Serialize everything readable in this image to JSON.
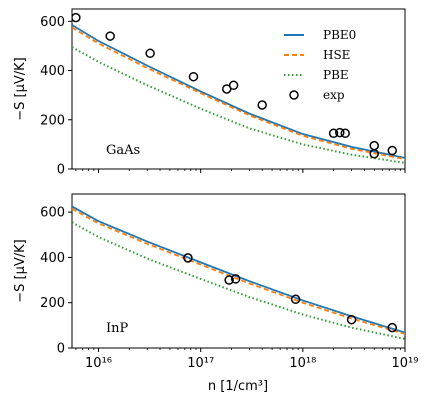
{
  "chart_data": [
    {
      "type": "line",
      "annotation": "GaAs",
      "ylabel": "−S [μV/K]",
      "xlabel": "",
      "xscale": "log",
      "xlim": [
        5500000000000000.0,
        1e+19
      ],
      "ylim": [
        0,
        650
      ],
      "yticks": [
        0,
        200,
        400,
        600
      ],
      "xticks": [
        1e+16,
        1e+17,
        1e+18,
        1e+19
      ],
      "xtick_labels": [],
      "legend": {
        "placement": "top-right",
        "entries": [
          "PBE0",
          "HSE",
          "PBE",
          "exp"
        ]
      },
      "series": [
        {
          "name": "PBE0",
          "style": "solid",
          "color": "#1f77b4",
          "x": [
            5500000000000000.0,
            1e+16,
            3e+16,
            1e+17,
            3e+17,
            1e+18,
            3e+18,
            1e+19
          ],
          "y": [
            585,
            520,
            420,
            315,
            225,
            142,
            90,
            45
          ]
        },
        {
          "name": "HSE",
          "style": "dashed",
          "color": "#ff7f0e",
          "x": [
            5500000000000000.0,
            1e+16,
            3e+16,
            1e+17,
            3e+17,
            1e+18,
            3e+18,
            1e+19
          ],
          "y": [
            575,
            510,
            410,
            308,
            218,
            135,
            82,
            40
          ]
        },
        {
          "name": "PBE",
          "style": "dotted",
          "color": "#2ca02c",
          "x": [
            5500000000000000.0,
            1e+16,
            3e+16,
            1e+17,
            3e+17,
            1e+18,
            3e+18,
            1e+19
          ],
          "y": [
            495,
            435,
            340,
            245,
            165,
            100,
            58,
            25
          ]
        },
        {
          "name": "exp",
          "style": "marker",
          "color": "#000000",
          "x": [
            6000000000000000.0,
            1.3e+16,
            3.2e+16,
            8.5e+16,
            1.8e+17,
            2.1e+17,
            4e+17,
            2e+18,
            2.3e+18,
            2.6e+18,
            5e+18,
            5e+18,
            7.5e+18
          ],
          "y": [
            615,
            540,
            470,
            375,
            325,
            340,
            260,
            145,
            148,
            145,
            95,
            62,
            75
          ]
        }
      ]
    },
    {
      "type": "line",
      "annotation": "InP",
      "ylabel": "−S [μV/K]",
      "xlabel": "n [1/cm³]",
      "xscale": "log",
      "xlim": [
        5500000000000000.0,
        1e+19
      ],
      "ylim": [
        0,
        680
      ],
      "yticks": [
        0,
        200,
        400,
        600
      ],
      "xticks": [
        1e+16,
        1e+17,
        1e+18,
        1e+19
      ],
      "xtick_labels": [
        "10¹⁶",
        "10¹⁷",
        "10¹⁸",
        "10¹⁹"
      ],
      "series": [
        {
          "name": "PBE0",
          "style": "solid",
          "color": "#1f77b4",
          "x": [
            5500000000000000.0,
            1e+16,
            3e+16,
            1e+17,
            3e+17,
            1e+18,
            3e+18,
            1e+19
          ],
          "y": [
            625,
            560,
            470,
            378,
            295,
            210,
            140,
            68
          ]
        },
        {
          "name": "HSE",
          "style": "dashed",
          "color": "#ff7f0e",
          "x": [
            5500000000000000.0,
            1e+16,
            3e+16,
            1e+17,
            3e+17,
            1e+18,
            3e+18,
            1e+19
          ],
          "y": [
            615,
            550,
            460,
            368,
            285,
            200,
            130,
            62
          ]
        },
        {
          "name": "PBE",
          "style": "dotted",
          "color": "#2ca02c",
          "x": [
            5500000000000000.0,
            1e+16,
            3e+16,
            1e+17,
            3e+17,
            1e+18,
            3e+18,
            1e+19
          ],
          "y": [
            555,
            490,
            395,
            305,
            225,
            148,
            90,
            40
          ]
        },
        {
          "name": "exp",
          "style": "marker",
          "color": "#000000",
          "x": [
            7.5e+16,
            1.9e+17,
            2.2e+17,
            8.5e+17,
            3e+18,
            7.5e+18
          ],
          "y": [
            398,
            300,
            305,
            215,
            125,
            90
          ]
        }
      ]
    }
  ]
}
